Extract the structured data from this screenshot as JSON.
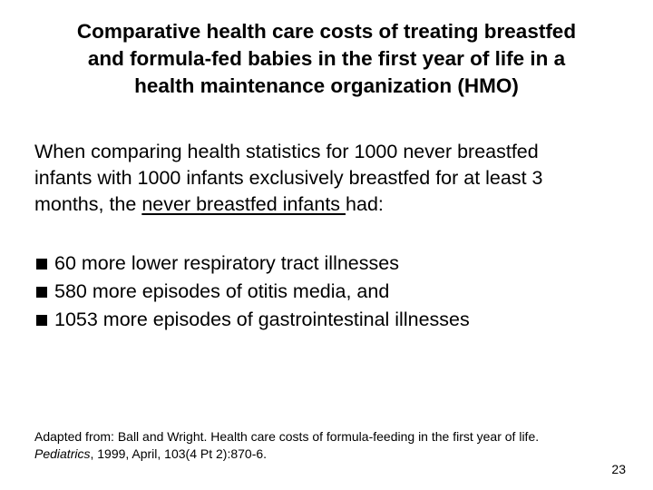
{
  "slide": {
    "title_lines": [
      "Comparative health care costs of treating breastfed",
      "and formula-fed babies in the first year of life in a",
      "health maintenance organization (HMO)"
    ],
    "intro": {
      "line1": "When comparing health statistics for 1000 never breastfed",
      "line2": "infants with 1000 infants exclusively breastfed for at least 3",
      "line3_prefix": "months, the ",
      "line3_underlined": "never breastfed infants ",
      "line3_suffix": "had:"
    },
    "bullets": [
      " 60 more lower respiratory tract illnesses",
      " 580 more episodes of otitis media, and",
      "1053 more episodes of gastrointestinal illnesses"
    ],
    "citation": {
      "line1": "Adapted from: Ball and Wright. Health care costs of formula-feeding in the first year of life.",
      "journal": "Pediatrics",
      "line2_rest": ", 1999, April, 103(4 Pt 2):870-6."
    },
    "page_number": "23"
  }
}
